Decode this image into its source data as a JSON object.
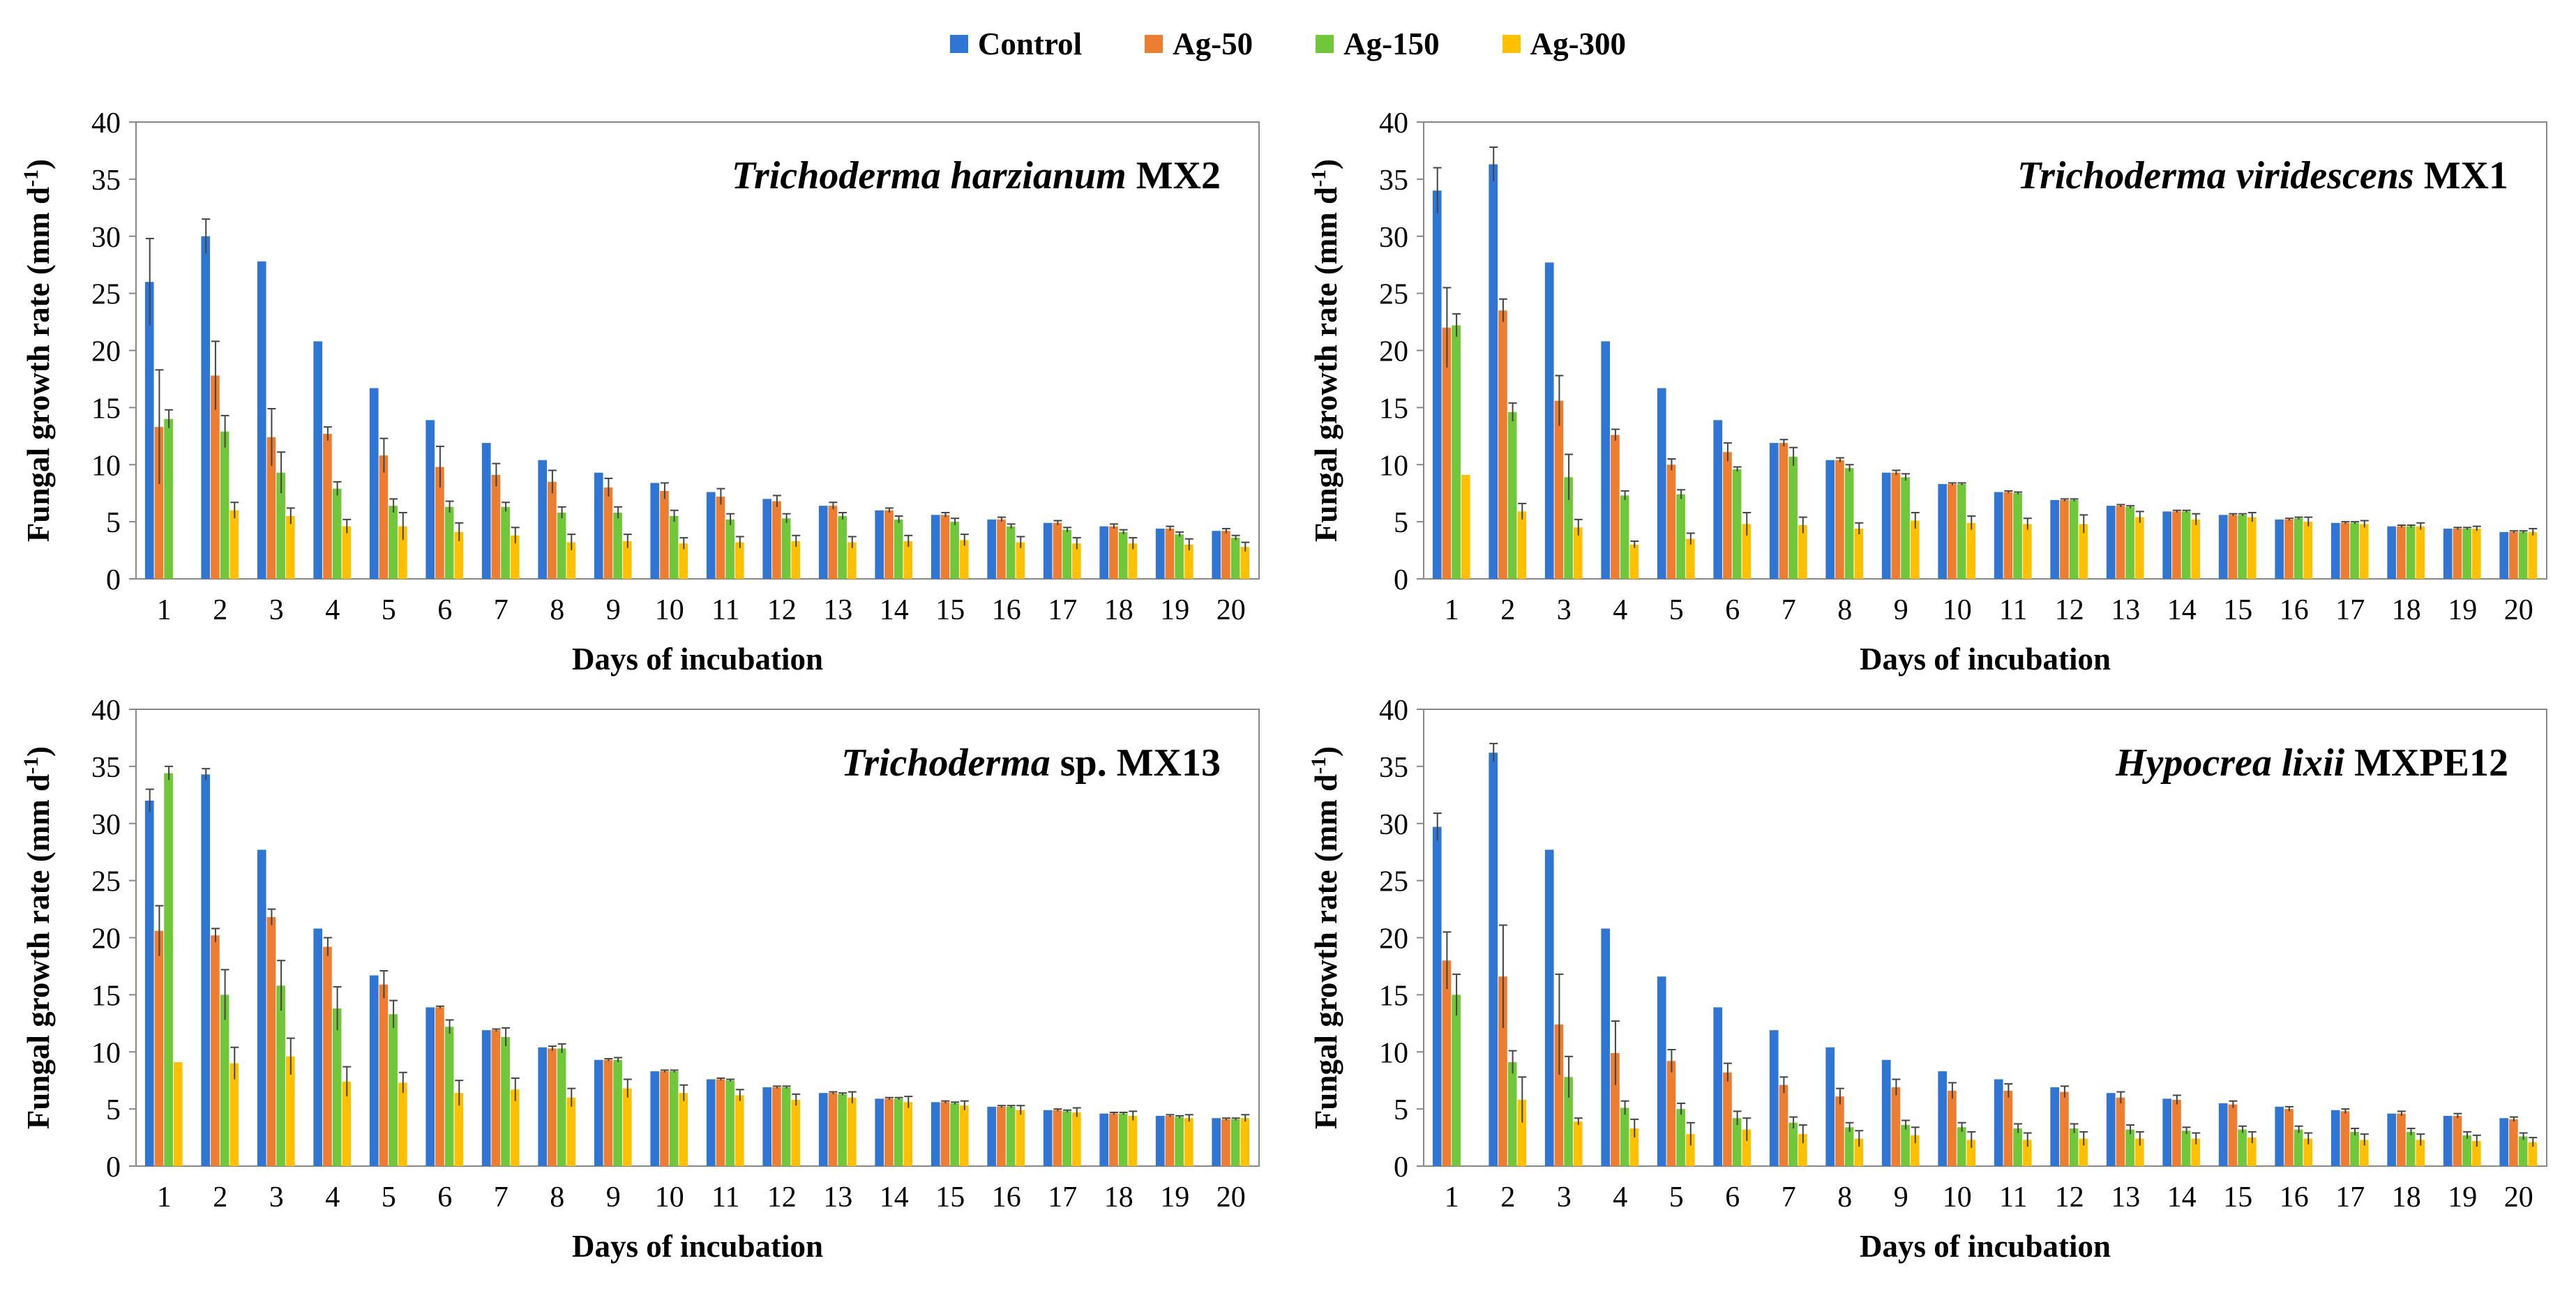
{
  "legend": {
    "series": [
      {
        "name": "Control",
        "color": "#2E75D4"
      },
      {
        "name": "Ag-50",
        "color": "#ED7D31"
      },
      {
        "name": "Ag-150",
        "color": "#70C73A"
      },
      {
        "name": "Ag-300",
        "color": "#FFC000"
      }
    ]
  },
  "chart_data": [
    {
      "type": "bar",
      "title_italic": "Trichoderma harzianum",
      "title_rest": " MX2",
      "xlabel": "Days of incubation",
      "ylabel_main": "Fungal growth rate (mm d",
      "ylabel_sup": "-1",
      "ylabel_end": ")",
      "ylim": [
        0,
        40
      ],
      "yticks": [
        "0",
        "5",
        "10",
        "15",
        "20",
        "25",
        "30",
        "35",
        "40"
      ],
      "categories": [
        "1",
        "2",
        "3",
        "4",
        "5",
        "6",
        "7",
        "8",
        "9",
        "10",
        "11",
        "12",
        "13",
        "14",
        "15",
        "16",
        "17",
        "18",
        "19",
        "20"
      ],
      "series": [
        {
          "name": "Control",
          "values": [
            26,
            30,
            27.8,
            20.8,
            16.7,
            13.9,
            11.9,
            10.4,
            9.3,
            8.4,
            7.6,
            7,
            6.4,
            6,
            5.6,
            5.2,
            4.9,
            4.6,
            4.4,
            4.2
          ],
          "errors": [
            3.8,
            1.5,
            0,
            0,
            0,
            0,
            0,
            0,
            0,
            0,
            0,
            0,
            0,
            0,
            0,
            0,
            0,
            0,
            0,
            0
          ]
        },
        {
          "name": "Ag-50",
          "values": [
            13.3,
            17.8,
            12.4,
            12.7,
            10.8,
            9.8,
            9.1,
            8.5,
            8,
            7.7,
            7.2,
            6.8,
            6.4,
            6,
            5.6,
            5.2,
            4.9,
            4.6,
            4.4,
            4.2
          ],
          "errors": [
            5,
            3,
            2.5,
            0.6,
            1.5,
            1.8,
            1,
            1,
            0.8,
            0.7,
            0.7,
            0.5,
            0.3,
            0.2,
            0.2,
            0.2,
            0.2,
            0.2,
            0.2,
            0.2
          ]
        },
        {
          "name": "Ag-150",
          "values": [
            14,
            12.9,
            9.3,
            7.9,
            6.4,
            6.3,
            6.3,
            5.8,
            5.8,
            5.5,
            5.2,
            5.3,
            5.5,
            5.2,
            5,
            4.6,
            4.3,
            4.1,
            3.9,
            3.6
          ],
          "errors": [
            0.8,
            1.4,
            1.8,
            0.6,
            0.6,
            0.5,
            0.4,
            0.5,
            0.5,
            0.5,
            0.5,
            0.4,
            0.3,
            0.3,
            0.3,
            0.2,
            0.2,
            0.2,
            0.2,
            0.2
          ]
        },
        {
          "name": "Ag-300",
          "values": [
            0,
            6,
            5.5,
            4.6,
            4.6,
            4.1,
            3.8,
            3.2,
            3.3,
            3.1,
            3.2,
            3.3,
            3.2,
            3.3,
            3.4,
            3.2,
            3.1,
            3.1,
            3,
            2.8
          ],
          "errors": [
            0,
            0.7,
            0.7,
            0.6,
            1.2,
            0.8,
            0.7,
            0.7,
            0.6,
            0.5,
            0.5,
            0.5,
            0.5,
            0.5,
            0.5,
            0.5,
            0.5,
            0.5,
            0.5,
            0.4
          ]
        }
      ]
    },
    {
      "type": "bar",
      "title_italic": "Trichoderma viridescens",
      "title_rest": " MX1",
      "xlabel": "Days of incubation",
      "ylabel_main": "Fungal growth rate (mm d",
      "ylabel_sup": "-1",
      "ylabel_end": ")",
      "ylim": [
        0,
        40
      ],
      "yticks": [
        "0",
        "5",
        "10",
        "15",
        "20",
        "25",
        "30",
        "35",
        "40"
      ],
      "categories": [
        "1",
        "2",
        "3",
        "4",
        "5",
        "6",
        "7",
        "8",
        "9",
        "10",
        "11",
        "12",
        "13",
        "14",
        "15",
        "16",
        "17",
        "18",
        "19",
        "20"
      ],
      "series": [
        {
          "name": "Control",
          "values": [
            34,
            36.3,
            27.7,
            20.8,
            16.7,
            13.9,
            11.9,
            10.4,
            9.3,
            8.3,
            7.6,
            6.9,
            6.4,
            5.9,
            5.6,
            5.2,
            4.9,
            4.6,
            4.4,
            4.1
          ],
          "errors": [
            2,
            1.5,
            0,
            0,
            0,
            0,
            0,
            0,
            0,
            0,
            0,
            0,
            0,
            0,
            0,
            0,
            0,
            0,
            0,
            0
          ]
        },
        {
          "name": "Ag-50",
          "values": [
            22,
            23.5,
            15.6,
            12.6,
            10,
            11.1,
            11.9,
            10.4,
            9.3,
            8.3,
            7.6,
            6.9,
            6.4,
            5.9,
            5.6,
            5.2,
            4.9,
            4.6,
            4.4,
            4.1
          ],
          "errors": [
            3.5,
            1,
            2.2,
            0.5,
            0.5,
            0.8,
            0.3,
            0.2,
            0.2,
            0.1,
            0.1,
            0.1,
            0.1,
            0.1,
            0.1,
            0.1,
            0.1,
            0.1,
            0.1,
            0.1
          ]
        },
        {
          "name": "Ag-150",
          "values": [
            22.2,
            14.6,
            8.9,
            7.3,
            7.4,
            9.6,
            10.7,
            9.7,
            8.9,
            8.3,
            7.5,
            6.9,
            6.3,
            5.9,
            5.6,
            5.3,
            4.9,
            4.6,
            4.4,
            4.1
          ],
          "errors": [
            1,
            0.8,
            2,
            0.4,
            0.4,
            0.2,
            0.8,
            0.3,
            0.3,
            0.1,
            0.1,
            0.1,
            0.1,
            0.1,
            0.1,
            0.1,
            0.1,
            0.1,
            0.1,
            0.1
          ]
        },
        {
          "name": "Ag-300",
          "values": [
            9.1,
            5.9,
            4.5,
            3,
            3.5,
            4.8,
            4.7,
            4.4,
            5.1,
            4.9,
            4.8,
            4.8,
            5.4,
            5.2,
            5.4,
            5,
            4.8,
            4.6,
            4.4,
            4.1
          ],
          "errors": [
            0,
            0.7,
            0.7,
            0.3,
            0.5,
            1,
            0.7,
            0.5,
            0.7,
            0.6,
            0.5,
            0.8,
            0.5,
            0.5,
            0.4,
            0.4,
            0.3,
            0.3,
            0.2,
            0.3
          ]
        }
      ]
    },
    {
      "type": "bar",
      "title_italic": "Trichoderma",
      "title_rest": " sp. MX13",
      "xlabel": "Days of incubation",
      "ylabel_main": "Fungal growth rate (mm d",
      "ylabel_sup": "-1",
      "ylabel_end": ")",
      "ylim": [
        0,
        40
      ],
      "yticks": [
        "0",
        "5",
        "10",
        "15",
        "20",
        "25",
        "30",
        "35",
        "40"
      ],
      "categories": [
        "1",
        "2",
        "3",
        "4",
        "5",
        "6",
        "7",
        "8",
        "9",
        "10",
        "11",
        "12",
        "13",
        "14",
        "15",
        "16",
        "17",
        "18",
        "19",
        "20"
      ],
      "series": [
        {
          "name": "Control",
          "values": [
            32,
            34.3,
            27.7,
            20.8,
            16.7,
            13.9,
            11.9,
            10.4,
            9.3,
            8.3,
            7.6,
            6.9,
            6.4,
            5.9,
            5.6,
            5.2,
            4.9,
            4.6,
            4.4,
            4.2
          ],
          "errors": [
            1,
            0.5,
            0,
            0,
            0,
            0,
            0,
            0,
            0,
            0,
            0,
            0,
            0,
            0,
            0,
            0,
            0,
            0,
            0,
            0
          ]
        },
        {
          "name": "Ag-50",
          "values": [
            20.6,
            20.2,
            21.8,
            19.2,
            15.9,
            13.9,
            11.9,
            10.3,
            9.3,
            8.3,
            7.6,
            6.9,
            6.4,
            5.9,
            5.6,
            5.2,
            4.9,
            4.6,
            4.4,
            4.1
          ],
          "errors": [
            2.2,
            0.6,
            0.7,
            0.8,
            1.2,
            0.1,
            0.1,
            0.2,
            0.1,
            0.1,
            0.1,
            0.1,
            0.1,
            0.1,
            0.1,
            0.1,
            0.1,
            0.1,
            0.1,
            0.1
          ]
        },
        {
          "name": "Ag-150",
          "values": [
            34.4,
            15,
            15.8,
            13.8,
            13.3,
            12.2,
            11.3,
            10.3,
            9.3,
            8.3,
            7.5,
            6.9,
            6.3,
            5.9,
            5.5,
            5.2,
            4.8,
            4.6,
            4.3,
            4.1
          ],
          "errors": [
            0.6,
            2.2,
            2.2,
            1.9,
            1.2,
            0.6,
            0.8,
            0.4,
            0.2,
            0.1,
            0.1,
            0.1,
            0.1,
            0.1,
            0.1,
            0.1,
            0.1,
            0.1,
            0.1,
            0.1
          ]
        },
        {
          "name": "Ag-300",
          "values": [
            9.1,
            9,
            9.6,
            7.4,
            7.3,
            6.4,
            6.7,
            6,
            6.8,
            6.4,
            6.2,
            5.8,
            6,
            5.6,
            5.3,
            4.9,
            4.7,
            4.4,
            4.2,
            4.2
          ],
          "errors": [
            0,
            1.4,
            1.6,
            1.3,
            0.9,
            1.1,
            1,
            0.8,
            0.8,
            0.7,
            0.5,
            0.5,
            0.5,
            0.5,
            0.4,
            0.4,
            0.4,
            0.4,
            0.3,
            0.3
          ]
        }
      ]
    },
    {
      "type": "bar",
      "title_italic": "Hypocrea lixii",
      "title_rest": " MXPE12",
      "xlabel": "Days of incubation",
      "ylabel_main": "Fungal growth rate (mm d",
      "ylabel_sup": "-1",
      "ylabel_end": ")",
      "ylim": [
        0,
        40
      ],
      "yticks": [
        "0",
        "5",
        "10",
        "15",
        "20",
        "25",
        "30",
        "35",
        "40"
      ],
      "categories": [
        "1",
        "2",
        "3",
        "4",
        "5",
        "6",
        "7",
        "8",
        "9",
        "10",
        "11",
        "12",
        "13",
        "14",
        "15",
        "16",
        "17",
        "18",
        "19",
        "20"
      ],
      "series": [
        {
          "name": "Control",
          "values": [
            29.7,
            36.2,
            27.7,
            20.8,
            16.6,
            13.9,
            11.9,
            10.4,
            9.3,
            8.3,
            7.6,
            6.9,
            6.4,
            5.9,
            5.5,
            5.2,
            4.9,
            4.6,
            4.4,
            4.2
          ],
          "errors": [
            1.2,
            0.8,
            0,
            0,
            0,
            0,
            0,
            0,
            0,
            0,
            0,
            0,
            0,
            0,
            0,
            0,
            0,
            0,
            0,
            0
          ]
        },
        {
          "name": "Ag-50",
          "values": [
            18,
            16.6,
            12.4,
            9.9,
            9.2,
            8.2,
            7.1,
            6.1,
            6.9,
            6.6,
            6.6,
            6.5,
            6,
            5.8,
            5.4,
            5,
            4.8,
            4.6,
            4.4,
            4.1
          ],
          "errors": [
            2.5,
            4.5,
            4.4,
            2.8,
            1,
            0.8,
            0.7,
            0.7,
            0.7,
            0.7,
            0.6,
            0.5,
            0.5,
            0.4,
            0.3,
            0.2,
            0.2,
            0.2,
            0.2,
            0.2
          ]
        },
        {
          "name": "Ag-150",
          "values": [
            15,
            9.1,
            7.8,
            5.1,
            5,
            4.2,
            3.8,
            3.4,
            3.6,
            3.4,
            3.3,
            3.3,
            3.2,
            3.1,
            3.2,
            3.2,
            3,
            3,
            2.7,
            2.6
          ],
          "errors": [
            1.8,
            1,
            1.8,
            0.6,
            0.5,
            0.6,
            0.5,
            0.4,
            0.4,
            0.4,
            0.4,
            0.4,
            0.4,
            0.3,
            0.3,
            0.3,
            0.3,
            0.3,
            0.3,
            0.3
          ]
        },
        {
          "name": "Ag-300",
          "values": [
            0,
            5.8,
            3.9,
            3.3,
            2.8,
            3.2,
            2.8,
            2.4,
            2.7,
            2.3,
            2.3,
            2.4,
            2.4,
            2.4,
            2.5,
            2.4,
            2.3,
            2.3,
            2.2,
            2.1
          ],
          "errors": [
            0,
            2,
            0.3,
            0.8,
            1,
            1,
            0.8,
            0.7,
            0.7,
            0.7,
            0.6,
            0.6,
            0.6,
            0.5,
            0.5,
            0.5,
            0.5,
            0.5,
            0.5,
            0.4
          ]
        }
      ]
    }
  ]
}
